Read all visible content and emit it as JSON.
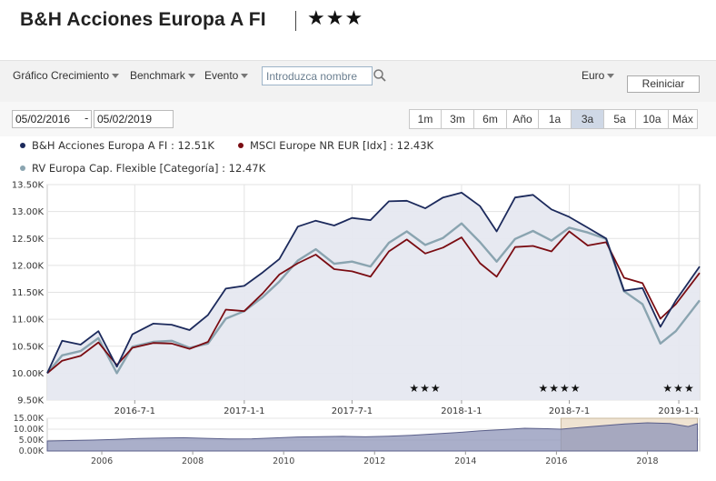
{
  "header": {
    "title": "B&H Acciones Europa A FI",
    "rating_stars": "★★★"
  },
  "toolbar": {
    "growth_menu": "Gráfico Crecimiento",
    "benchmark_menu": "Benchmark",
    "event_menu": "Evento",
    "search_placeholder": "Introduzca nombre",
    "currency_menu": "Euro",
    "reset_label": "Reiniciar"
  },
  "date_range": {
    "start": "05/02/2016",
    "separator": "-",
    "end": "05/02/2019"
  },
  "periods": {
    "buttons": [
      "1m",
      "3m",
      "6m",
      "Año",
      "1a",
      "3a",
      "5a",
      "10a",
      "Máx"
    ],
    "active": "3a"
  },
  "legend": {
    "fund": "B&H Acciones Europa A FI : 12.51K",
    "index": "MSCI Europe NR EUR [Idx] : 12.43K",
    "category": "RV Europa Cap. Flexible [Categoría] : 12.47K"
  },
  "colors": {
    "fund": "#1c2a5c",
    "index": "#7a0c12",
    "category": "#8aa4b0",
    "area_fill": "#e6e8f0",
    "navigator_fill": "#8d94b8",
    "navigator_selection": "#efe3d2"
  },
  "chart_data": {
    "type": "line",
    "y_tick_labels": [
      "9.50K",
      "10.00K",
      "10.50K",
      "11.00K",
      "11.50K",
      "12.00K",
      "12.50K",
      "13.00K",
      "13.50K"
    ],
    "ylim": [
      9500,
      13500
    ],
    "grid": true,
    "legend_position": "top",
    "x_tick_labels": [
      {
        "label": "2016-7-1",
        "date": "2016-07-01"
      },
      {
        "label": "2017-1-1",
        "date": "2017-01-01"
      },
      {
        "label": "2017-7-1",
        "date": "2017-07-01"
      },
      {
        "label": "2018-1-1",
        "date": "2018-01-01"
      },
      {
        "label": "2018-7-1",
        "date": "2018-07-01"
      },
      {
        "label": "2019-1-1",
        "date": "2019-01-01"
      }
    ],
    "x_range": [
      "2016-02-05",
      "2019-02-05"
    ],
    "dates": [
      "2016-02-05",
      "2016-03-01",
      "2016-04-01",
      "2016-05-01",
      "2016-06-01",
      "2016-06-27",
      "2016-08-01",
      "2016-09-01",
      "2016-10-01",
      "2016-11-01",
      "2016-12-01",
      "2017-01-01",
      "2017-02-01",
      "2017-03-01",
      "2017-04-01",
      "2017-05-01",
      "2017-06-01",
      "2017-07-01",
      "2017-08-01",
      "2017-09-01",
      "2017-10-01",
      "2017-11-01",
      "2017-12-01",
      "2018-01-01",
      "2018-02-01",
      "2018-03-01",
      "2018-04-01",
      "2018-05-01",
      "2018-06-01",
      "2018-07-01",
      "2018-08-01",
      "2018-09-01",
      "2018-10-01",
      "2018-11-01",
      "2018-12-01",
      "2018-12-27",
      "2019-02-05"
    ],
    "series": [
      {
        "name": "B&H Acciones Europa A FI",
        "color": "#1c2a5c",
        "values": [
          10000,
          10600,
          10530,
          10780,
          10120,
          10720,
          10920,
          10900,
          10800,
          11080,
          11570,
          11620,
          11870,
          12120,
          12720,
          12830,
          12740,
          12880,
          12840,
          13190,
          13200,
          13060,
          13260,
          13350,
          13100,
          12630,
          13260,
          13310,
          13040,
          12900,
          12700,
          12500,
          11530,
          11580,
          10860,
          11350,
          11980
        ]
      },
      {
        "name": "MSCI Europe NR EUR [Idx]",
        "color": "#7a0c12",
        "values": [
          10000,
          10230,
          10320,
          10570,
          10150,
          10470,
          10560,
          10550,
          10450,
          10580,
          11180,
          11150,
          11480,
          11830,
          12040,
          12200,
          11930,
          11890,
          11790,
          12260,
          12480,
          12220,
          12330,
          12520,
          12040,
          11790,
          12340,
          12360,
          12260,
          12630,
          12370,
          12430,
          11770,
          11670,
          11010,
          11280,
          11860
        ]
      },
      {
        "name": "RV Europa Cap. Flexible [Categoría]",
        "color": "#8aa4b0",
        "values": [
          10000,
          10330,
          10410,
          10650,
          10000,
          10490,
          10580,
          10600,
          10470,
          10550,
          11010,
          11150,
          11410,
          11700,
          12090,
          12300,
          12030,
          12070,
          11980,
          12420,
          12630,
          12380,
          12510,
          12780,
          12430,
          12070,
          12490,
          12640,
          12460,
          12700,
          12610,
          12490,
          11520,
          11280,
          10550,
          10780,
          11350
        ]
      }
    ],
    "rating_markers": [
      {
        "label": "★★★",
        "date": "2017-11-01"
      },
      {
        "label": "★★★★",
        "date": "2018-06-15"
      },
      {
        "label": "★★★",
        "date": "2019-01-01"
      }
    ],
    "navigator": {
      "y_tick_labels": [
        "0.00K",
        "5.00K",
        "10.00K",
        "15.00K"
      ],
      "ylim": [
        0,
        15000
      ],
      "x_tick_labels": [
        "2006",
        "2008",
        "2010",
        "2012",
        "2014",
        "2016",
        "2018"
      ],
      "x_range": [
        2004.8,
        2019.15
      ],
      "selection": [
        2016.1,
        2019.1
      ],
      "years": [
        2004.8,
        2005.3,
        2005.8,
        2006.3,
        2006.8,
        2007.3,
        2007.8,
        2008.3,
        2008.8,
        2009.3,
        2009.8,
        2010.3,
        2010.8,
        2011.3,
        2011.8,
        2012.3,
        2012.8,
        2013.3,
        2013.8,
        2014.3,
        2014.8,
        2015.3,
        2015.8,
        2016.1,
        2016.5,
        2017.0,
        2017.5,
        2018.0,
        2018.5,
        2018.9,
        2019.1
      ],
      "values": [
        4600,
        4800,
        5000,
        5300,
        5700,
        5900,
        6100,
        5800,
        5500,
        5600,
        6000,
        6400,
        6600,
        6700,
        6500,
        6800,
        7200,
        7800,
        8400,
        9200,
        9800,
        10400,
        10200,
        10000,
        10700,
        11600,
        12400,
        12900,
        12600,
        11200,
        12500
      ]
    }
  }
}
